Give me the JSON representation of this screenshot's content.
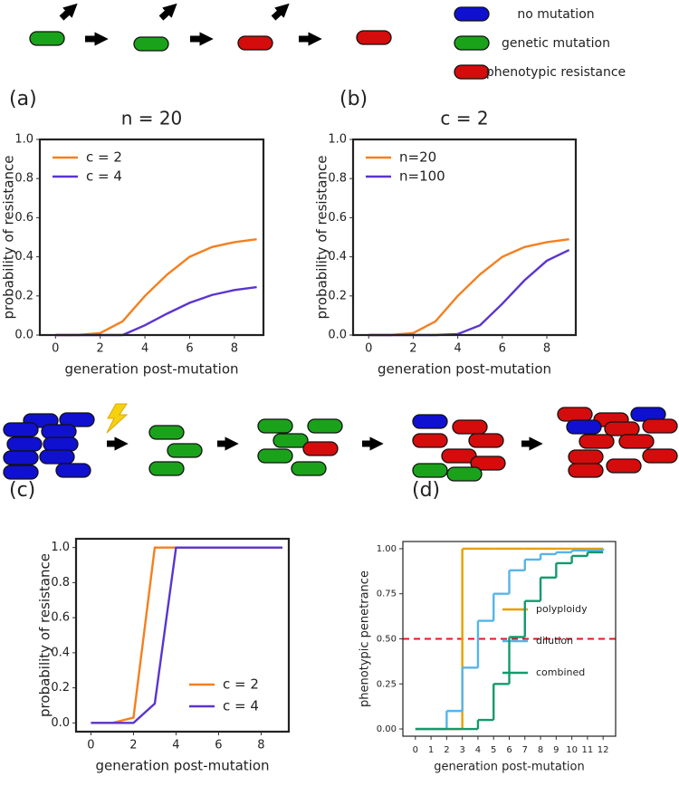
{
  "legend": {
    "items": [
      {
        "label": "no mutation",
        "color": "#1010d0"
      },
      {
        "label": "genetic mutation",
        "color": "#1aa31a"
      },
      {
        "label": "phenotypic resistance",
        "color": "#d40c0c"
      }
    ]
  },
  "chart_data": [
    {
      "type": "line",
      "label": "(a)",
      "title": "n = 20",
      "x": [
        0,
        1,
        2,
        3,
        4,
        5,
        6,
        7,
        8,
        9
      ],
      "xlim": [
        -0.7,
        9.3
      ],
      "xticks": [
        0,
        2,
        4,
        6,
        8
      ],
      "ylim": [
        0,
        1
      ],
      "yticks": [
        {
          "value": 0,
          "label": "0.0"
        },
        {
          "value": 0.2,
          "label": "0.2"
        },
        {
          "value": 0.4,
          "label": "0.4"
        },
        {
          "value": 0.6,
          "label": "0.6"
        },
        {
          "value": 0.8,
          "label": "0.8"
        },
        {
          "value": 1,
          "label": "1.0"
        }
      ],
      "xlabel": "generation post-mutation",
      "ylabel": "probability of resistance",
      "legend": "upper left",
      "series": [
        {
          "name": "c = 2",
          "color": "#f57f1f",
          "values": [
            0,
            0,
            0.01,
            0.07,
            0.2,
            0.31,
            0.4,
            0.45,
            0.475,
            0.49
          ]
        },
        {
          "name": "c = 4",
          "color": "#5a35cf",
          "values": [
            0,
            0,
            0,
            0,
            0.05,
            0.11,
            0.165,
            0.205,
            0.23,
            0.245
          ]
        }
      ]
    },
    {
      "type": "line",
      "label": "(b)",
      "title": "c = 2",
      "x": [
        0,
        1,
        2,
        3,
        4,
        5,
        6,
        7,
        8,
        9
      ],
      "xlim": [
        -0.7,
        9.3
      ],
      "xticks": [
        0,
        2,
        4,
        6,
        8
      ],
      "ylim": [
        0,
        1
      ],
      "yticks": [
        {
          "value": 0,
          "label": "0.0"
        },
        {
          "value": 0.2,
          "label": "0.2"
        },
        {
          "value": 0.4,
          "label": "0.4"
        },
        {
          "value": 0.6,
          "label": "0.6"
        },
        {
          "value": 0.8,
          "label": "0.8"
        },
        {
          "value": 1,
          "label": "1.0"
        }
      ],
      "xlabel": "generation post-mutation",
      "ylabel": "probability of resistance",
      "legend": "upper left",
      "series": [
        {
          "name": "n=20",
          "color": "#f57f1f",
          "values": [
            0,
            0,
            0.01,
            0.07,
            0.2,
            0.31,
            0.4,
            0.45,
            0.475,
            0.49
          ]
        },
        {
          "name": "n=100",
          "color": "#5a35cf",
          "values": [
            0,
            0,
            0,
            0,
            0.005,
            0.05,
            0.16,
            0.28,
            0.38,
            0.435
          ]
        }
      ]
    },
    {
      "type": "line",
      "label": "(c)",
      "x": [
        0,
        1,
        2,
        3,
        4,
        5,
        6,
        7,
        8,
        9
      ],
      "xlim": [
        -0.7,
        9.3
      ],
      "xticks": [
        0,
        2,
        4,
        6,
        8
      ],
      "ylim": [
        -0.05,
        1.05
      ],
      "yticks": [
        {
          "value": 0,
          "label": "0.0"
        },
        {
          "value": 0.2,
          "label": "0.2"
        },
        {
          "value": 0.4,
          "label": "0.4"
        },
        {
          "value": 0.6,
          "label": "0.6"
        },
        {
          "value": 0.8,
          "label": "0.8"
        },
        {
          "value": 1,
          "label": "1.0"
        }
      ],
      "xlabel": "generation post-mutation",
      "ylabel": "probability of resistance",
      "legend": "lower right",
      "series": [
        {
          "name": "c = 2",
          "color": "#f57f1f",
          "values": [
            0,
            0,
            0.03,
            1,
            1,
            1,
            1,
            1,
            1,
            1
          ]
        },
        {
          "name": "c = 4",
          "color": "#5a35cf",
          "values": [
            0,
            0,
            0,
            0.11,
            1,
            1,
            1,
            1,
            1,
            1
          ]
        }
      ]
    },
    {
      "type": "step",
      "label": "(d)",
      "x": [
        0,
        1,
        2,
        3,
        4,
        5,
        6,
        7,
        8,
        9,
        10,
        11,
        12
      ],
      "xlim": [
        -0.8,
        12.8
      ],
      "xticks": [
        0,
        1,
        2,
        3,
        4,
        5,
        6,
        7,
        8,
        9,
        10,
        11,
        12
      ],
      "ylim": [
        -0.04,
        1.04
      ],
      "yticks": [
        {
          "value": 0,
          "label": "0.00"
        },
        {
          "value": 0.25,
          "label": "0.25"
        },
        {
          "value": 0.5,
          "label": "0.50"
        },
        {
          "value": 0.75,
          "label": "0.75"
        },
        {
          "value": 1,
          "label": "1.00"
        }
      ],
      "xlabel": "generation post-mutation",
      "ylabel": "phenotypic penetrance",
      "legend": "lower right",
      "hline": {
        "value": 0.5,
        "color": "#e8141f"
      },
      "series": [
        {
          "name": "polyploidy",
          "color": "#e69f00",
          "values": [
            0,
            0,
            0,
            1,
            1,
            1,
            1,
            1,
            1,
            1,
            1,
            1,
            1
          ]
        },
        {
          "name": "dilution",
          "color": "#56b4e9",
          "values": [
            0,
            0,
            0.1,
            0.34,
            0.6,
            0.75,
            0.88,
            0.94,
            0.97,
            0.98,
            0.99,
            0.99,
            1
          ]
        },
        {
          "name": "combined",
          "color": "#139a6c",
          "values": [
            0,
            0,
            0,
            0,
            0.05,
            0.25,
            0.51,
            0.71,
            0.84,
            0.92,
            0.96,
            0.98,
            0.98
          ]
        }
      ]
    }
  ]
}
